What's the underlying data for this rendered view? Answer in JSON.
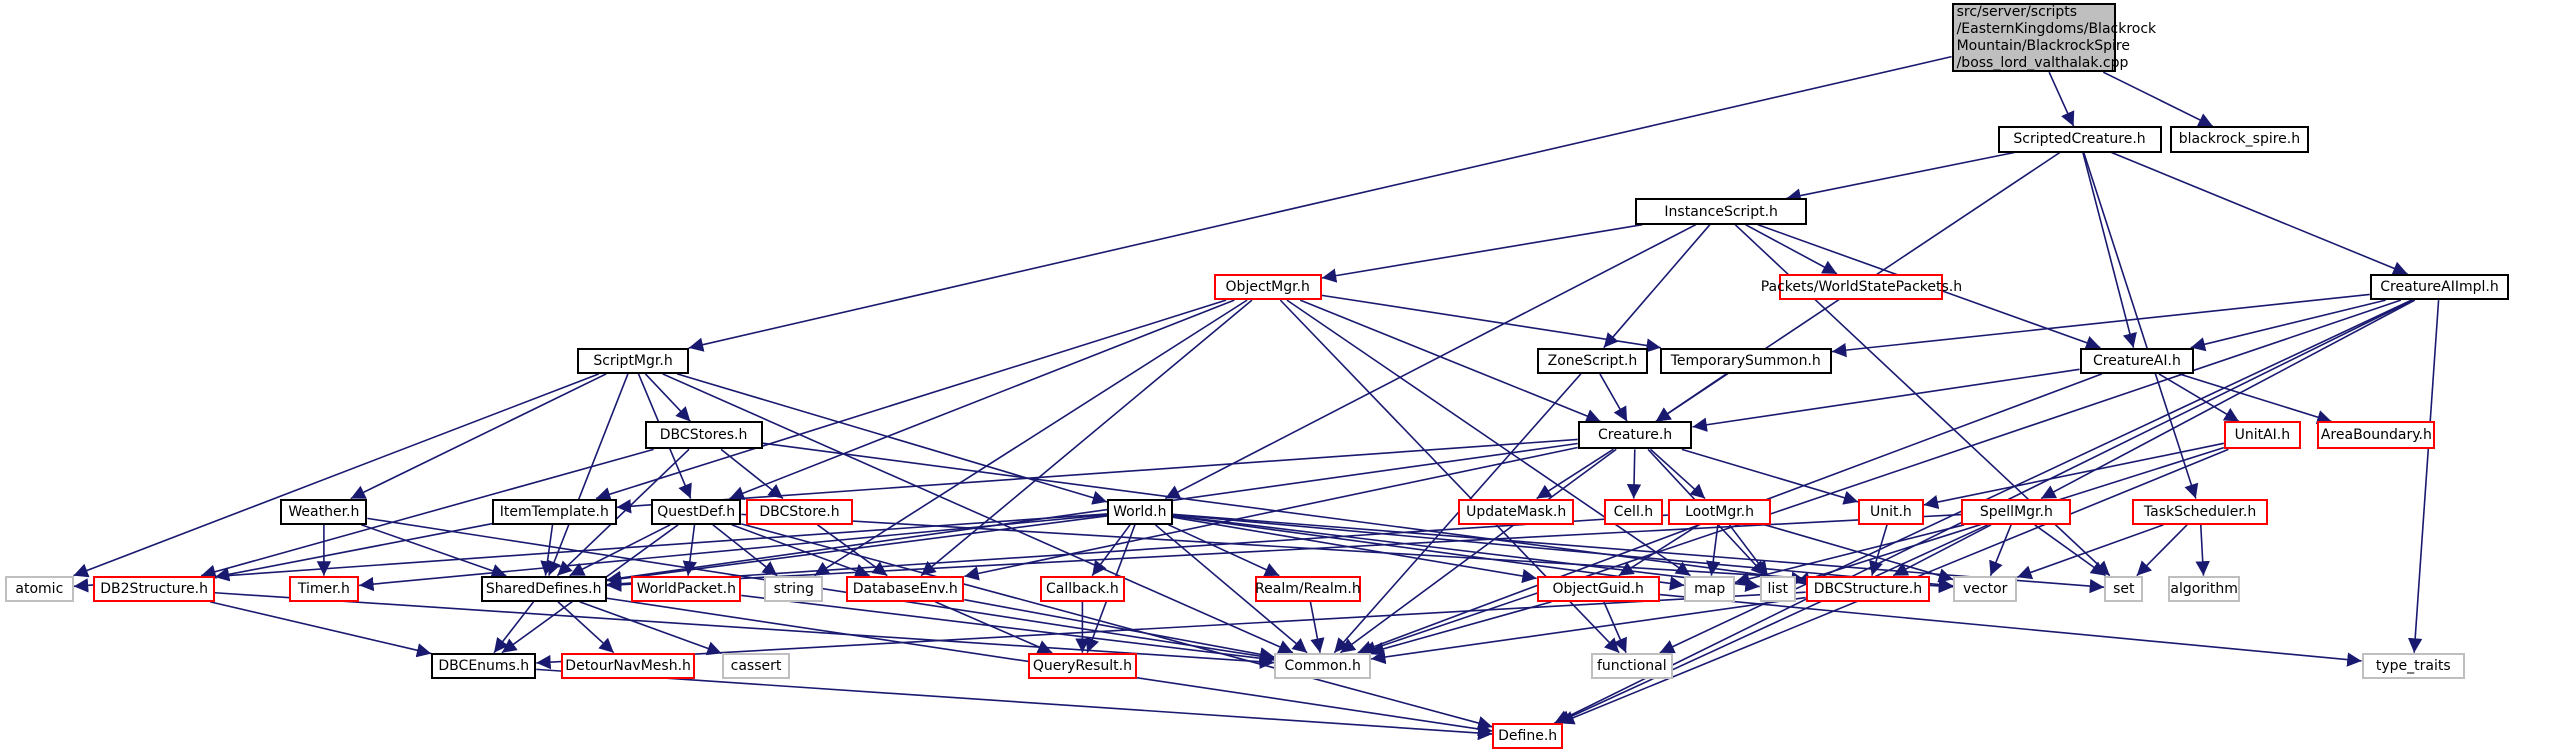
{
  "graph": {
    "edge_color": "#191970",
    "root": {
      "id": "root",
      "lines": [
        "src/server/scripts",
        "/EasternKingdoms/Blackrock",
        "Mountain/BlackrockSpire",
        "/boss_lord_valthalak.cpp"
      ]
    },
    "nodes": [
      {
        "id": "ScriptedCreature",
        "label": "ScriptedCreature.h",
        "style": "black"
      },
      {
        "id": "blackrock_spire",
        "label": "blackrock_spire.h",
        "style": "black"
      },
      {
        "id": "InstanceScript",
        "label": "InstanceScript.h",
        "style": "black"
      },
      {
        "id": "ObjectMgr",
        "label": "ObjectMgr.h",
        "style": "red"
      },
      {
        "id": "Packets",
        "label": "Packets/WorldStatePackets.h",
        "style": "red"
      },
      {
        "id": "CreatureAIImpl",
        "label": "CreatureAIImpl.h",
        "style": "black"
      },
      {
        "id": "ScriptMgr",
        "label": "ScriptMgr.h",
        "style": "black"
      },
      {
        "id": "ZoneScript",
        "label": "ZoneScript.h",
        "style": "black"
      },
      {
        "id": "TemporarySummon",
        "label": "TemporarySummon.h",
        "style": "black"
      },
      {
        "id": "CreatureAI",
        "label": "CreatureAI.h",
        "style": "black"
      },
      {
        "id": "DBCStores",
        "label": "DBCStores.h",
        "style": "black"
      },
      {
        "id": "Creature",
        "label": "Creature.h",
        "style": "black"
      },
      {
        "id": "UnitAI",
        "label": "UnitAI.h",
        "style": "red"
      },
      {
        "id": "AreaBoundary",
        "label": "AreaBoundary.h",
        "style": "red"
      },
      {
        "id": "Weather",
        "label": "Weather.h",
        "style": "black"
      },
      {
        "id": "ItemTemplate",
        "label": "ItemTemplate.h",
        "style": "black"
      },
      {
        "id": "QuestDef",
        "label": "QuestDef.h",
        "style": "black"
      },
      {
        "id": "DBCStore",
        "label": "DBCStore.h",
        "style": "red"
      },
      {
        "id": "World",
        "label": "World.h",
        "style": "black"
      },
      {
        "id": "UpdateMask",
        "label": "UpdateMask.h",
        "style": "red"
      },
      {
        "id": "Cell",
        "label": "Cell.h",
        "style": "red"
      },
      {
        "id": "LootMgr",
        "label": "LootMgr.h",
        "style": "red"
      },
      {
        "id": "Unit",
        "label": "Unit.h",
        "style": "red"
      },
      {
        "id": "SpellMgr",
        "label": "SpellMgr.h",
        "style": "red"
      },
      {
        "id": "TaskScheduler",
        "label": "TaskScheduler.h",
        "style": "red"
      },
      {
        "id": "atomic",
        "label": "atomic",
        "style": "gray"
      },
      {
        "id": "DB2Structure",
        "label": "DB2Structure.h",
        "style": "red"
      },
      {
        "id": "Timer",
        "label": "Timer.h",
        "style": "red"
      },
      {
        "id": "SharedDefines",
        "label": "SharedDefines.h",
        "style": "black"
      },
      {
        "id": "WorldPacket",
        "label": "WorldPacket.h",
        "style": "red"
      },
      {
        "id": "string",
        "label": "string",
        "style": "gray"
      },
      {
        "id": "DatabaseEnv",
        "label": "DatabaseEnv.h",
        "style": "red"
      },
      {
        "id": "Callback",
        "label": "Callback.h",
        "style": "red"
      },
      {
        "id": "Realm",
        "label": "Realm/Realm.h",
        "style": "red"
      },
      {
        "id": "ObjectGuid",
        "label": "ObjectGuid.h",
        "style": "red"
      },
      {
        "id": "map",
        "label": "map",
        "style": "gray"
      },
      {
        "id": "list",
        "label": "list",
        "style": "gray"
      },
      {
        "id": "DBCStructure",
        "label": "DBCStructure.h",
        "style": "red"
      },
      {
        "id": "vector",
        "label": "vector",
        "style": "gray"
      },
      {
        "id": "set",
        "label": "set",
        "style": "gray"
      },
      {
        "id": "algorithm",
        "label": "algorithm",
        "style": "gray"
      },
      {
        "id": "DBCEnums",
        "label": "DBCEnums.h",
        "style": "black"
      },
      {
        "id": "DetourNavMesh",
        "label": "DetourNavMesh.h",
        "style": "red"
      },
      {
        "id": "cassert",
        "label": "cassert",
        "style": "gray"
      },
      {
        "id": "QueryResult",
        "label": "QueryResult.h",
        "style": "red"
      },
      {
        "id": "Common",
        "label": "Common.h",
        "style": "gray"
      },
      {
        "id": "functional",
        "label": "functional",
        "style": "gray"
      },
      {
        "id": "type_traits",
        "label": "type_traits",
        "style": "gray"
      },
      {
        "id": "Define",
        "label": "Define.h",
        "style": "red"
      }
    ],
    "edges": [
      [
        "root",
        "ScriptedCreature"
      ],
      [
        "root",
        "blackrock_spire"
      ],
      [
        "root",
        "ScriptMgr"
      ],
      [
        "ScriptedCreature",
        "InstanceScript"
      ],
      [
        "ScriptedCreature",
        "CreatureAI"
      ],
      [
        "ScriptedCreature",
        "Creature"
      ],
      [
        "ScriptedCreature",
        "CreatureAIImpl"
      ],
      [
        "ScriptedCreature",
        "TaskScheduler"
      ],
      [
        "InstanceScript",
        "ObjectMgr"
      ],
      [
        "InstanceScript",
        "Packets"
      ],
      [
        "InstanceScript",
        "ZoneScript"
      ],
      [
        "InstanceScript",
        "CreatureAI"
      ],
      [
        "InstanceScript",
        "World"
      ],
      [
        "InstanceScript",
        "set"
      ],
      [
        "CreatureAIImpl",
        "TemporarySummon"
      ],
      [
        "CreatureAIImpl",
        "CreatureAI"
      ],
      [
        "CreatureAIImpl",
        "SpellMgr"
      ],
      [
        "CreatureAIImpl",
        "Common"
      ],
      [
        "CreatureAIImpl",
        "functional"
      ],
      [
        "CreatureAIImpl",
        "type_traits"
      ],
      [
        "CreatureAIImpl",
        "Define"
      ],
      [
        "ObjectMgr",
        "ItemTemplate"
      ],
      [
        "ObjectMgr",
        "QuestDef"
      ],
      [
        "ObjectMgr",
        "DatabaseEnv"
      ],
      [
        "ObjectMgr",
        "string"
      ],
      [
        "ObjectMgr",
        "Creature"
      ],
      [
        "ObjectMgr",
        "TemporarySummon"
      ],
      [
        "ObjectMgr",
        "map"
      ],
      [
        "ObjectMgr",
        "functional"
      ],
      [
        "ScriptMgr",
        "DBCStores"
      ],
      [
        "ScriptMgr",
        "Weather"
      ],
      [
        "ScriptMgr",
        "QuestDef"
      ],
      [
        "ScriptMgr",
        "SharedDefines"
      ],
      [
        "ScriptMgr",
        "World"
      ],
      [
        "ScriptMgr",
        "atomic"
      ],
      [
        "ScriptMgr",
        "Common"
      ],
      [
        "ZoneScript",
        "Creature"
      ],
      [
        "ZoneScript",
        "Common"
      ],
      [
        "TemporarySummon",
        "Creature"
      ],
      [
        "CreatureAI",
        "Creature"
      ],
      [
        "CreatureAI",
        "UnitAI"
      ],
      [
        "CreatureAI",
        "AreaBoundary"
      ],
      [
        "CreatureAI",
        "Common"
      ],
      [
        "DBCStores",
        "DB2Structure"
      ],
      [
        "DBCStores",
        "SharedDefines"
      ],
      [
        "DBCStores",
        "DBCStore"
      ],
      [
        "DBCStores",
        "DBCStructure"
      ],
      [
        "Creature",
        "ItemTemplate"
      ],
      [
        "Creature",
        "UpdateMask"
      ],
      [
        "Creature",
        "Cell"
      ],
      [
        "Creature",
        "LootMgr"
      ],
      [
        "Creature",
        "Unit"
      ],
      [
        "Creature",
        "DatabaseEnv"
      ],
      [
        "Creature",
        "list"
      ],
      [
        "Creature",
        "Common"
      ],
      [
        "Creature",
        "SharedDefines"
      ],
      [
        "UnitAI",
        "Unit"
      ],
      [
        "UnitAI",
        "list"
      ],
      [
        "UnitAI",
        "Define"
      ],
      [
        "Weather",
        "Timer"
      ],
      [
        "Weather",
        "SharedDefines"
      ],
      [
        "Weather",
        "Common"
      ],
      [
        "ItemTemplate",
        "SharedDefines"
      ],
      [
        "ItemTemplate",
        "DB2Structure"
      ],
      [
        "QuestDef",
        "SharedDefines"
      ],
      [
        "QuestDef",
        "WorldPacket"
      ],
      [
        "QuestDef",
        "string"
      ],
      [
        "QuestDef",
        "DatabaseEnv"
      ],
      [
        "QuestDef",
        "DBCEnums"
      ],
      [
        "QuestDef",
        "Define"
      ],
      [
        "QuestDef",
        "vector"
      ],
      [
        "DBCStore",
        "DatabaseEnv"
      ],
      [
        "World",
        "SharedDefines"
      ],
      [
        "World",
        "Timer"
      ],
      [
        "World",
        "Callback"
      ],
      [
        "World",
        "QueryResult"
      ],
      [
        "World",
        "Realm"
      ],
      [
        "World",
        "ObjectGuid"
      ],
      [
        "World",
        "Common"
      ],
      [
        "World",
        "atomic"
      ],
      [
        "World",
        "map"
      ],
      [
        "World",
        "list"
      ],
      [
        "World",
        "set"
      ],
      [
        "World",
        "vector"
      ],
      [
        "LootMgr",
        "ObjectGuid"
      ],
      [
        "LootMgr",
        "map"
      ],
      [
        "LootMgr",
        "list"
      ],
      [
        "LootMgr",
        "vector"
      ],
      [
        "LootMgr",
        "SharedDefines"
      ],
      [
        "Unit",
        "DBCStructure"
      ],
      [
        "SpellMgr",
        "SharedDefines"
      ],
      [
        "SpellMgr",
        "DBCStructure"
      ],
      [
        "SpellMgr",
        "vector"
      ],
      [
        "SpellMgr",
        "set"
      ],
      [
        "SpellMgr",
        "map"
      ],
      [
        "SpellMgr",
        "Define"
      ],
      [
        "TaskScheduler",
        "vector"
      ],
      [
        "TaskScheduler",
        "set"
      ],
      [
        "TaskScheduler",
        "algorithm"
      ],
      [
        "DB2Structure",
        "DBCEnums"
      ],
      [
        "DB2Structure",
        "Common"
      ],
      [
        "SharedDefines",
        "DBCEnums"
      ],
      [
        "SharedDefines",
        "DetourNavMesh"
      ],
      [
        "SharedDefines",
        "cassert"
      ],
      [
        "SharedDefines",
        "Define"
      ],
      [
        "WorldPacket",
        "Common"
      ],
      [
        "DatabaseEnv",
        "QueryResult"
      ],
      [
        "DatabaseEnv",
        "Common"
      ],
      [
        "Callback",
        "QueryResult"
      ],
      [
        "Realm",
        "Common"
      ],
      [
        "ObjectGuid",
        "Common"
      ],
      [
        "ObjectGuid",
        "functional"
      ],
      [
        "ObjectGuid",
        "type_traits"
      ],
      [
        "DBCStructure",
        "Common"
      ],
      [
        "DBCStructure",
        "DBCEnums"
      ],
      [
        "DBCEnums",
        "Define"
      ]
    ]
  }
}
